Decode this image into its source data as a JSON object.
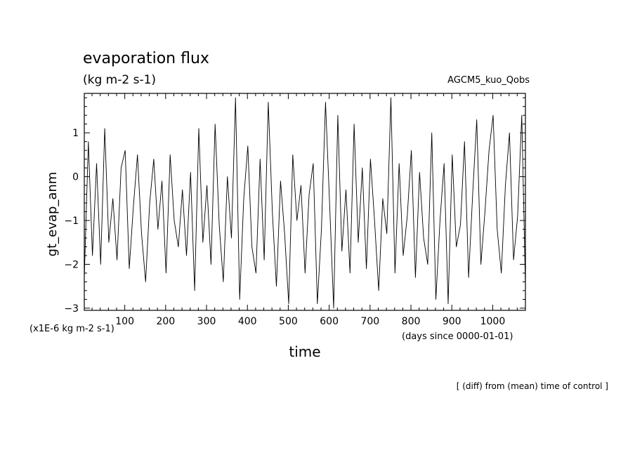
{
  "chart_data": {
    "type": "line",
    "title": "evaporation flux",
    "subtitle": "(kg m-2 s-1)",
    "run_label": "AGCM5_kuo_Qobs",
    "ylabel": "gt_evap_anm",
    "xlabel": "time",
    "y_unit_label": "(x1E-6 kg m-2 s-1)",
    "x_unit_label": "(days since 0000-01-01)",
    "footnote": "[ (diff) from (mean) time of control ]",
    "xlim": [
      1,
      1080
    ],
    "ylim": [
      -3.05,
      1.9
    ],
    "x_ticks": [
      100,
      200,
      300,
      400,
      500,
      600,
      700,
      800,
      900,
      1000
    ],
    "y_ticks": [
      -3,
      -2,
      -1,
      0,
      1
    ],
    "x_tick_labels": [
      "100",
      "200",
      "300",
      "400",
      "500",
      "600",
      "700",
      "800",
      "900",
      "1000"
    ],
    "y_tick_labels": [
      "−3",
      "−2",
      "−1",
      "0",
      "1"
    ],
    "grid": false,
    "line_color": "#000000",
    "series": [
      {
        "x": [
          1,
          11,
          21,
          31,
          41,
          51,
          61,
          71,
          81,
          91,
          101,
          111,
          121,
          131,
          141,
          151,
          161,
          171,
          181,
          191,
          201,
          211,
          221,
          231,
          241,
          251,
          261,
          271,
          281,
          291,
          301,
          311,
          321,
          331,
          341,
          351,
          361,
          371,
          381,
          391,
          401,
          411,
          421,
          431,
          441,
          451,
          461,
          471,
          481,
          491,
          501,
          511,
          521,
          531,
          541,
          551,
          561,
          571,
          581,
          591,
          601,
          611,
          621,
          631,
          641,
          651,
          661,
          671,
          681,
          691,
          701,
          711,
          721,
          731,
          741,
          751,
          761,
          771,
          781,
          791,
          801,
          811,
          821,
          831,
          841,
          851,
          861,
          871,
          881,
          891,
          901,
          911,
          921,
          931,
          941,
          951,
          961,
          971,
          981,
          991,
          1001,
          1011,
          1021,
          1031,
          1041,
          1051,
          1061,
          1071,
          1080
        ],
        "y": [
          -2.3,
          0.8,
          -1.8,
          0.3,
          -2.0,
          1.1,
          -1.5,
          -0.5,
          -1.9,
          0.2,
          0.6,
          -2.1,
          -0.7,
          0.5,
          -1.3,
          -2.4,
          -0.6,
          0.4,
          -1.2,
          -0.1,
          -2.2,
          0.5,
          -1.0,
          -1.6,
          -0.3,
          -1.8,
          0.1,
          -2.6,
          1.1,
          -1.5,
          -0.2,
          -2.0,
          1.2,
          -1.1,
          -2.4,
          0.0,
          -1.4,
          1.8,
          -2.8,
          -0.5,
          0.7,
          -1.6,
          -2.2,
          0.4,
          -1.9,
          1.7,
          -0.8,
          -2.5,
          -0.1,
          -1.3,
          -2.9,
          0.5,
          -1.0,
          -0.2,
          -2.2,
          -0.4,
          0.3,
          -2.9,
          -1.2,
          1.7,
          -0.6,
          -3.0,
          1.4,
          -1.7,
          -0.3,
          -2.2,
          1.2,
          -1.5,
          0.2,
          -2.1,
          0.4,
          -1.0,
          -2.6,
          -0.5,
          -1.3,
          1.8,
          -2.2,
          0.3,
          -1.8,
          -0.9,
          0.6,
          -2.3,
          0.1,
          -1.4,
          -2.0,
          1.0,
          -2.8,
          -1.0,
          0.3,
          -2.9,
          0.5,
          -1.6,
          -1.1,
          0.8,
          -2.3,
          -0.4,
          1.3,
          -2.0,
          -0.8,
          0.6,
          1.4,
          -1.2,
          -2.2,
          -0.2,
          1.0,
          -1.9,
          -0.9,
          1.4,
          -2.5
        ]
      }
    ]
  }
}
